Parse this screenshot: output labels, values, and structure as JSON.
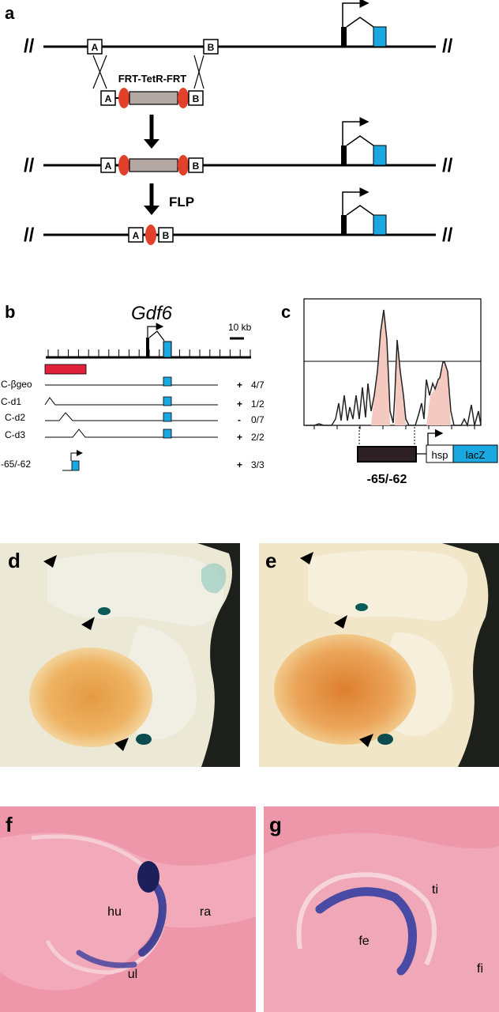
{
  "panel_a": {
    "label": "a",
    "cassette_label": "FRT-TetR-FRT",
    "box_a": "A",
    "box_b": "B",
    "flp_label": "FLP"
  },
  "panel_b": {
    "label": "b",
    "gene_title": "Gdf6",
    "scale_label": "10 kb",
    "constructs": [
      {
        "name": "C-βgeo",
        "sign": "+",
        "ratio": "4/7"
      },
      {
        "name": "C-d1",
        "sign": "+",
        "ratio": "1/2"
      },
      {
        "name": "C-d2",
        "sign": "-",
        "ratio": "0/7"
      },
      {
        "name": "C-d3",
        "sign": "+",
        "ratio": "2/2"
      },
      {
        "name": "-65/-62",
        "sign": "+",
        "ratio": "3/3"
      }
    ]
  },
  "panel_c": {
    "label": "c",
    "element_label": "-65/-62",
    "hsp_label": "hsp",
    "lacz_label": "lacZ"
  },
  "panel_d": {
    "label": "d"
  },
  "panel_e": {
    "label": "e"
  },
  "panel_f": {
    "label": "f",
    "tissues": [
      "hu",
      "ra",
      "ul"
    ]
  },
  "panel_g": {
    "label": "g",
    "tissues": [
      "ti",
      "fe",
      "fi"
    ]
  },
  "colors": {
    "exon_blue": "#19a9e0",
    "frt_red": "#e2402a",
    "cassette_grey": "#b3a8a3",
    "deletion_red": "#e0213b",
    "peak_pink": "#f4c9c0",
    "element_dark": "#2c2024",
    "lacz_blue": "#19a9e0",
    "xgal_blue": "#25307f",
    "eosin_pink": "#ef9aad"
  }
}
